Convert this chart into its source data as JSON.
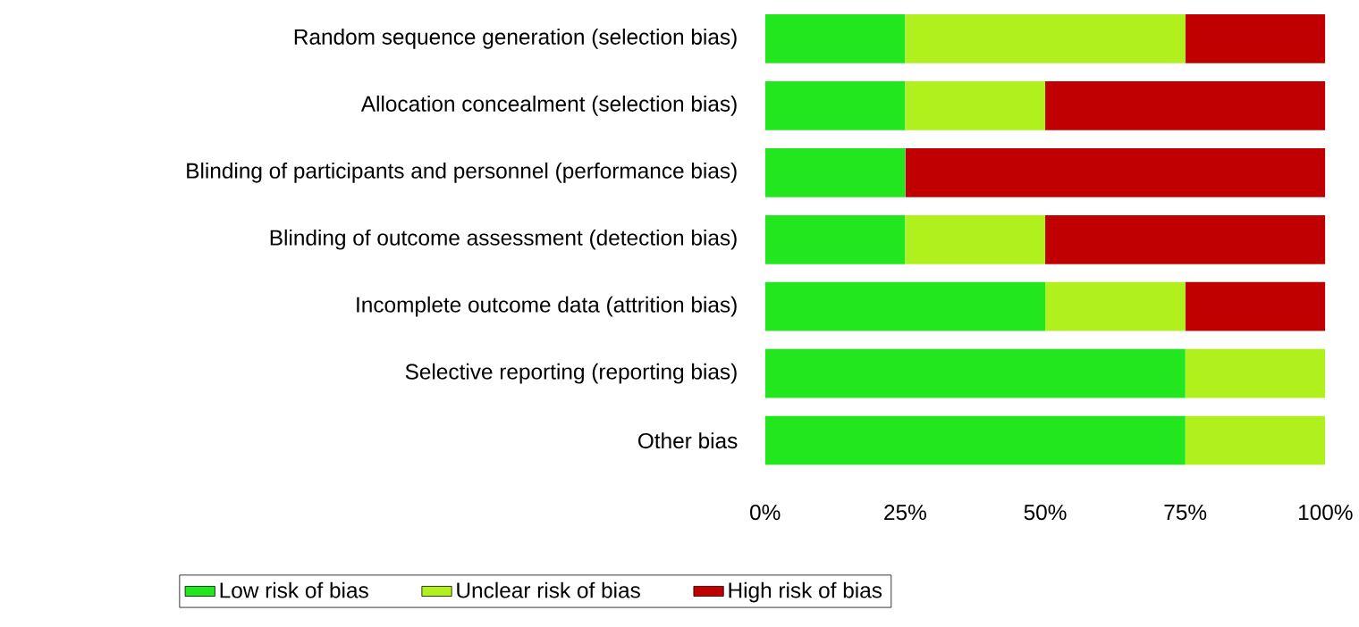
{
  "chart_data": {
    "type": "bar",
    "orientation": "horizontal",
    "stacked": true,
    "categories": [
      "Random sequence generation (selection bias)",
      "Allocation concealment (selection bias)",
      "Blinding of participants and personnel (performance bias)",
      "Blinding of outcome assessment (detection bias)",
      "Incomplete outcome data (attrition bias)",
      "Selective reporting (reporting bias)",
      "Other bias"
    ],
    "series": [
      {
        "name": "Low risk of bias",
        "color": "#22e61e",
        "values": [
          25,
          25,
          25,
          25,
          50,
          75,
          75
        ]
      },
      {
        "name": "Unclear risk of bias",
        "color": "#b0f01c",
        "values": [
          50,
          25,
          0,
          25,
          25,
          25,
          25
        ]
      },
      {
        "name": "High risk of bias",
        "color": "#c00000",
        "values": [
          25,
          50,
          75,
          50,
          25,
          0,
          0
        ]
      }
    ],
    "xlim": [
      0,
      100
    ],
    "xticks": [
      {
        "value": 0,
        "label": "0%"
      },
      {
        "value": 25,
        "label": "25%"
      },
      {
        "value": 50,
        "label": "50%"
      },
      {
        "value": 75,
        "label": "75%"
      },
      {
        "value": 100,
        "label": "100%"
      }
    ],
    "legend": "bottom"
  }
}
